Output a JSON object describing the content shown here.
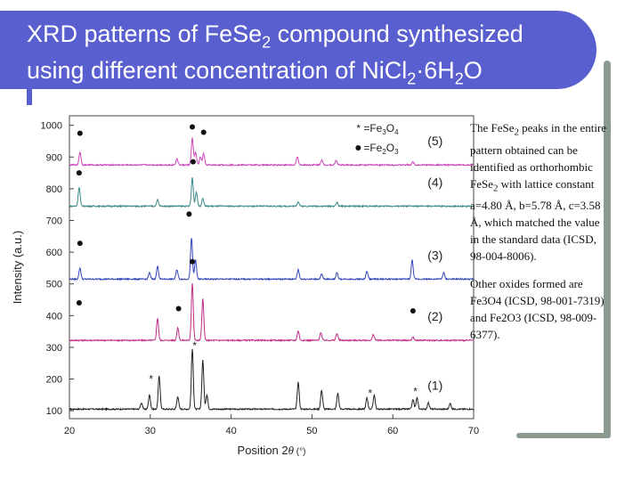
{
  "slide": {
    "title_line1_a": "XRD patterns of FeSe",
    "title_line1_sub": "2",
    "title_line1_b": " compound synthesized",
    "title_line2_a": "using different concentration of NiCl",
    "title_line2_sub1": "2",
    "title_line2_b": "·6H",
    "title_line2_sub2": "2",
    "title_line2_c": "O",
    "accent_color": "#5a5fcf",
    "frame_color": "#8a9a8f"
  },
  "side_text": {
    "p1_a": "The FeSe",
    "p1_sub": "2",
    "p1_b": " peaks in the entire pattern obtained can be identified as orthorhombic FeSe",
    "p1_sub2": "2",
    "p1_c": " with lattice constant a=4.80 Å, b=5.78 Å, c=3.58 Å, which matched the value in the standard data (ICSD, 98-004-8006).",
    "p2": "Other oxides formed are Fe3O4 (ICSD, 98-001-7319) and Fe2O3 (ICSD, 98-009-6377)."
  },
  "chart_data": {
    "type": "line",
    "xlabel_a": "Position 2",
    "xlabel_theta": "θ",
    "xlabel_b": " (°)",
    "ylabel": "Intensity (a.u.)",
    "xlim": [
      20,
      70
    ],
    "ylim": [
      75,
      1030
    ],
    "xticks": [
      20,
      30,
      40,
      50,
      60,
      70
    ],
    "yticks": [
      100,
      200,
      300,
      400,
      500,
      600,
      700,
      800,
      900,
      1000
    ],
    "legend": [
      {
        "marker": "*",
        "label_a": "=Fe",
        "sub1": "3",
        "label_b": "O",
        "sub2": "4"
      },
      {
        "marker": "●",
        "label_a": "=Fe",
        "sub1": "2",
        "label_b": "O",
        "sub2": "3"
      }
    ],
    "series": [
      {
        "name": "(1)",
        "baseline": 105,
        "color": "#222222",
        "peaks": [
          [
            28.9,
            20
          ],
          [
            29.9,
            45
          ],
          [
            31.1,
            105
          ],
          [
            33.4,
            40
          ],
          [
            35.2,
            190
          ],
          [
            36.5,
            155
          ],
          [
            37.0,
            45
          ],
          [
            48.3,
            85
          ],
          [
            51.2,
            60
          ],
          [
            53.2,
            50
          ],
          [
            56.8,
            35
          ],
          [
            57.7,
            45
          ],
          [
            62.5,
            30
          ],
          [
            63.0,
            35
          ],
          [
            64.4,
            20
          ],
          [
            67.1,
            18
          ]
        ]
      },
      {
        "name": "(2)",
        "baseline": 322,
        "color": "#c02d8a",
        "peaks": [
          [
            30.9,
            70
          ],
          [
            33.4,
            40
          ],
          [
            35.2,
            180
          ],
          [
            36.5,
            130
          ],
          [
            48.3,
            30
          ],
          [
            51.1,
            25
          ],
          [
            53.1,
            22
          ],
          [
            57.6,
            18
          ],
          [
            62.5,
            10
          ]
        ]
      },
      {
        "name": "(3)",
        "baseline": 515,
        "color": "#3344bb",
        "peaks": [
          [
            21.3,
            35
          ],
          [
            29.9,
            20
          ],
          [
            30.9,
            40
          ],
          [
            33.3,
            30
          ],
          [
            35.1,
            130
          ],
          [
            35.6,
            60
          ],
          [
            48.3,
            30
          ],
          [
            51.2,
            15
          ],
          [
            53.1,
            20
          ],
          [
            56.8,
            25
          ],
          [
            62.4,
            60
          ],
          [
            66.3,
            20
          ]
        ]
      },
      {
        "name": "(4)",
        "baseline": 745,
        "color": "#3a8a88",
        "peaks": [
          [
            21.2,
            60
          ],
          [
            30.9,
            20
          ],
          [
            35.2,
            90
          ],
          [
            35.7,
            45
          ],
          [
            36.5,
            25
          ],
          [
            48.3,
            15
          ],
          [
            53.1,
            12
          ]
        ]
      },
      {
        "name": "(5)",
        "baseline": 875,
        "color": "#cc44bb",
        "peaks": [
          [
            21.3,
            40
          ],
          [
            33.3,
            20
          ],
          [
            35.2,
            85
          ],
          [
            35.6,
            40
          ],
          [
            36.2,
            25
          ],
          [
            36.6,
            35
          ],
          [
            48.2,
            25
          ],
          [
            51.2,
            15
          ],
          [
            53.0,
            15
          ],
          [
            62.5,
            10
          ]
        ]
      }
    ],
    "series_labels": [
      "(1)",
      "(2)",
      "(3)",
      "(4)",
      "(5)"
    ],
    "annotations": [
      {
        "marker": "*",
        "x": 30.1,
        "y": 200
      },
      {
        "marker": "*",
        "x": 35.5,
        "y": 305
      },
      {
        "marker": "*",
        "x": 57.2,
        "y": 155
      },
      {
        "marker": "*",
        "x": 62.8,
        "y": 160
      },
      {
        "marker": "●",
        "x": 21.2,
        "y": 440
      },
      {
        "marker": "●",
        "x": 33.5,
        "y": 422
      },
      {
        "marker": "●",
        "x": 35.2,
        "y": 570
      },
      {
        "marker": "●",
        "x": 62.5,
        "y": 415
      },
      {
        "marker": "●",
        "x": 21.3,
        "y": 628
      },
      {
        "marker": "●",
        "x": 34.8,
        "y": 720
      },
      {
        "marker": "●",
        "x": 21.2,
        "y": 850
      },
      {
        "marker": "●",
        "x": 35.3,
        "y": 885
      },
      {
        "marker": "●",
        "x": 21.3,
        "y": 975
      },
      {
        "marker": "●",
        "x": 35.2,
        "y": 995
      },
      {
        "marker": "●",
        "x": 36.6,
        "y": 978
      }
    ]
  }
}
